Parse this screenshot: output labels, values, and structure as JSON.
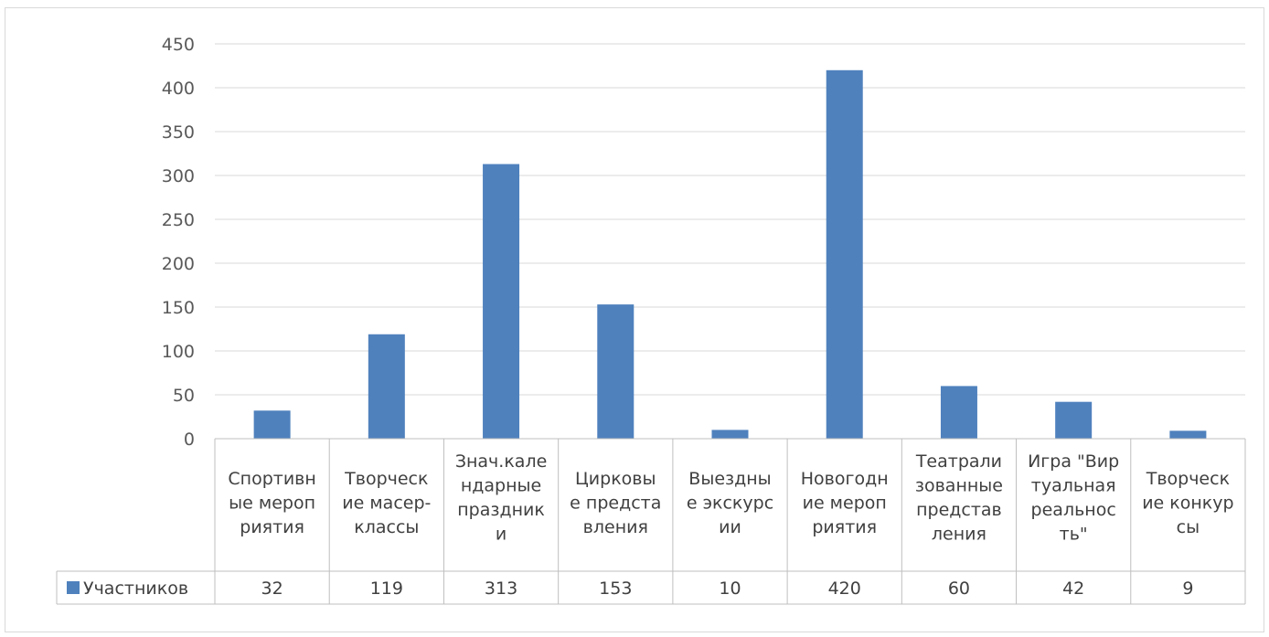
{
  "chart_data": {
    "type": "bar",
    "categories": [
      [
        "Спортивн",
        "ые мероп",
        "риятия"
      ],
      [
        "Творческ",
        "ие масер-",
        "классы"
      ],
      [
        "Знач.кале",
        "ндарные",
        "праздник",
        "и"
      ],
      [
        "Цирковы",
        "е предста",
        "вления"
      ],
      [
        "Выездны",
        "е экскурс",
        "ии"
      ],
      [
        "Новогодн",
        "ие мероп",
        "риятия"
      ],
      [
        "Театрали",
        "зованные",
        "представ",
        "ления"
      ],
      [
        "Игра \"Вир",
        "туальная",
        "реальнос",
        "ть\""
      ],
      [
        "Творческ",
        "ие конкур",
        "сы"
      ]
    ],
    "series": [
      {
        "name": "Участников",
        "values": [
          32,
          119,
          313,
          153,
          10,
          420,
          60,
          42,
          9
        ],
        "value_labels": [
          "32",
          "119",
          "313",
          "153",
          "10",
          "420",
          "60",
          "42",
          "9"
        ],
        "color": "#4f81bd"
      }
    ],
    "ylim": [
      0,
      450
    ],
    "yticks": [
      "0",
      "50",
      "100",
      "150",
      "200",
      "250",
      "300",
      "350",
      "400",
      "450"
    ],
    "grid": true,
    "legend": "data-table",
    "title": "",
    "xlabel": "",
    "ylabel": ""
  }
}
